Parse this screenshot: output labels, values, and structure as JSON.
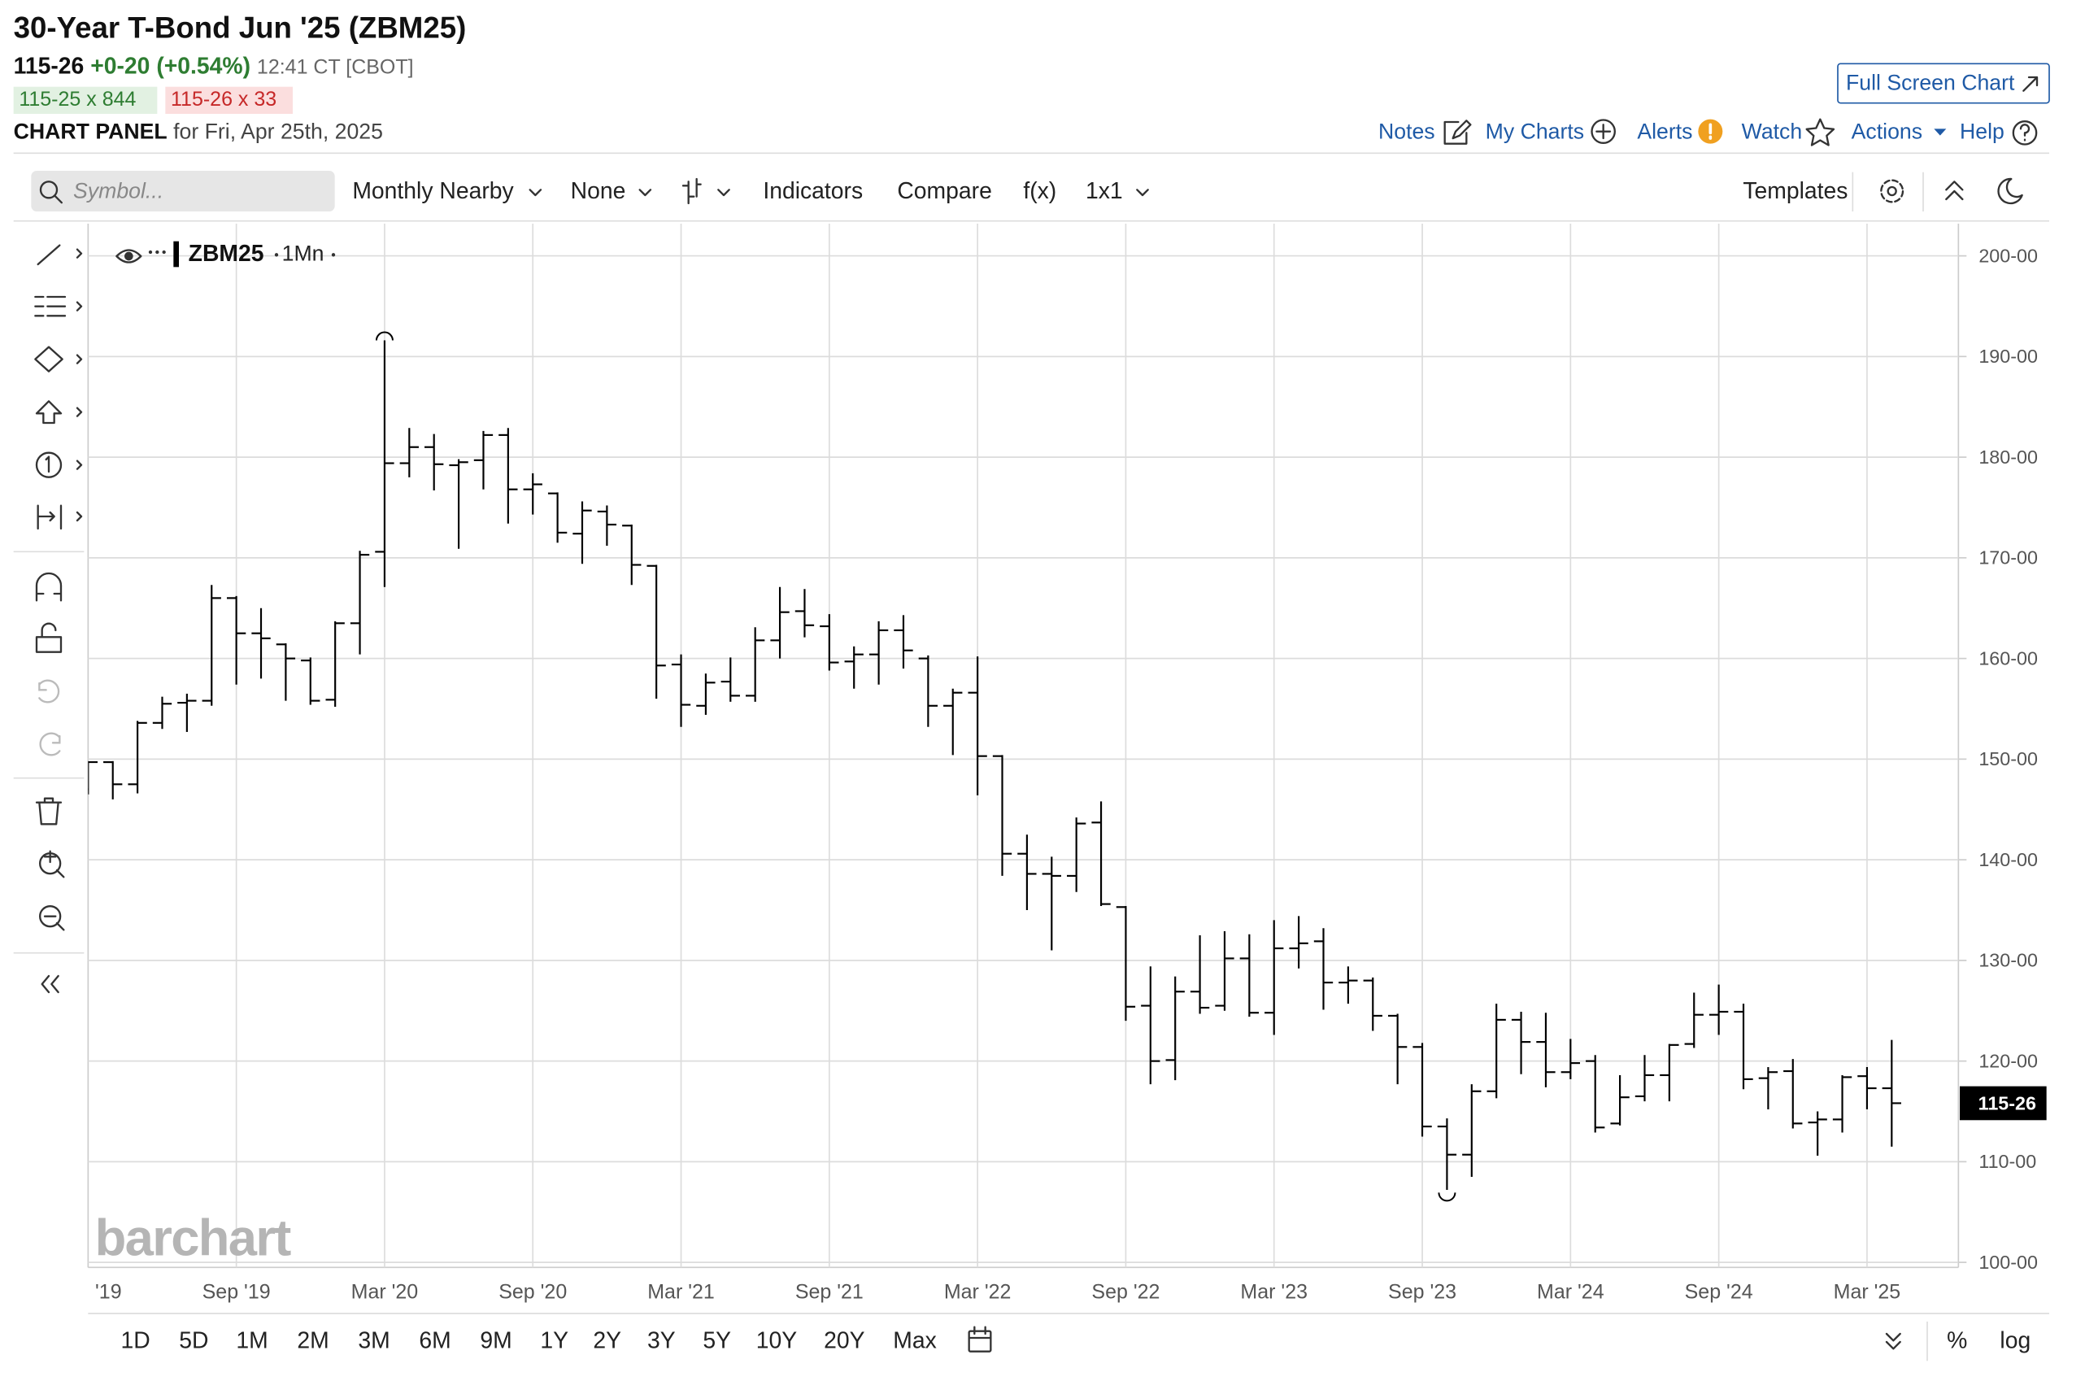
{
  "header": {
    "title": "30-Year T-Bond Jun '25 (ZBM25)",
    "last": "115-26",
    "change": "+0-20",
    "change_pct": "(+0.54%)",
    "time": "12:41 CT [CBOT]",
    "bid": "115-25 x 844",
    "ask": "115-26 x 33",
    "panel_label": "CHART PANEL",
    "panel_date": "for Fri, Apr 25th, 2025",
    "full_screen": "Full Screen Chart"
  },
  "nav": {
    "items": [
      "Notes",
      "My Charts",
      "Alerts",
      "Watch",
      "Actions",
      "Help"
    ]
  },
  "toolbar": {
    "search_placeholder": "Symbol...",
    "period": "Monthly Nearby",
    "overlay": "None",
    "indicators": "Indicators",
    "compare": "Compare",
    "function": "f(x)",
    "layout": "1x1",
    "templates": "Templates"
  },
  "chart_data": {
    "type": "ohlc",
    "interval": "1Mn",
    "watermark": "barchart",
    "categories": [
      "'19",
      null,
      null,
      null,
      null,
      null,
      "Sep '19",
      null,
      null,
      null,
      null,
      null,
      "Mar '20",
      null,
      null,
      null,
      null,
      null,
      "Sep '20",
      null,
      null,
      null,
      null,
      null,
      "Mar '21",
      null,
      null,
      null,
      null,
      null,
      "Sep '21",
      null,
      null,
      null,
      null,
      null,
      "Mar '22",
      null,
      null,
      null,
      null,
      null,
      "Sep '22",
      null,
      null,
      null,
      null,
      null,
      "Mar '23",
      null,
      null,
      null,
      null,
      null,
      "Sep '23",
      null,
      null,
      null,
      null,
      null,
      "Mar '24",
      null,
      null,
      null,
      null,
      null,
      "Sep '24",
      null,
      null,
      null,
      null,
      null,
      "Mar '25",
      null
    ],
    "series": [
      {
        "name": "ZBM25",
        "color": "#000000",
        "open": [
          147.0,
          149.7,
          147.5,
          153.6,
          155.6,
          155.8,
          166.0,
          162.5,
          161.4,
          159.8,
          155.9,
          163.5,
          170.6,
          179.4,
          181.0,
          179.2,
          179.7,
          182.2,
          176.8,
          176.4,
          172.4,
          174.6,
          173.2,
          169.2,
          159.4,
          155.3,
          157.7,
          156.3,
          161.8,
          164.7,
          163.2,
          159.7,
          160.4,
          162.8,
          160.0,
          155.3,
          156.6,
          150.3,
          140.6,
          138.6,
          138.4,
          143.7,
          135.3,
          125.5,
          120.1,
          126.9,
          125.5,
          130.2,
          124.8,
          131.2,
          131.9,
          127.8,
          128.0,
          124.5,
          121.4,
          113.5,
          110.7,
          117.0,
          124.1,
          121.9,
          118.9,
          120.0,
          113.8,
          116.5,
          118.6,
          121.7,
          124.6,
          124.9,
          118.3,
          119.0,
          113.9,
          114.2,
          118.5,
          117.3
        ],
        "high": [
          149.8,
          149.8,
          153.8,
          156.2,
          156.5,
          167.3,
          166.2,
          165.0,
          161.5,
          160.1,
          163.7,
          170.7,
          191.6,
          182.9,
          182.3,
          179.8,
          182.6,
          182.9,
          178.4,
          176.5,
          175.6,
          175.2,
          173.3,
          169.3,
          160.4,
          158.5,
          160.1,
          163.1,
          167.1,
          166.9,
          164.4,
          161.2,
          163.7,
          164.3,
          160.3,
          157.0,
          160.2,
          150.4,
          142.5,
          140.3,
          144.2,
          145.8,
          135.4,
          129.4,
          128.4,
          132.5,
          132.9,
          132.6,
          134.0,
          134.4,
          133.2,
          129.4,
          128.3,
          124.7,
          121.8,
          114.3,
          117.7,
          125.7,
          124.9,
          124.8,
          122.2,
          120.6,
          118.6,
          120.6,
          121.7,
          126.8,
          127.6,
          125.7,
          119.4,
          120.2,
          115.0,
          118.6,
          119.4,
          122.1
        ],
        "low": [
          146.5,
          146.0,
          146.6,
          153.0,
          152.7,
          155.3,
          157.4,
          158.0,
          155.8,
          155.4,
          155.2,
          160.4,
          167.1,
          178.0,
          176.7,
          170.9,
          176.8,
          173.4,
          174.3,
          171.5,
          169.4,
          171.2,
          167.3,
          156.0,
          153.2,
          154.4,
          155.7,
          155.7,
          160.0,
          162.1,
          158.8,
          157.0,
          157.4,
          159.0,
          153.2,
          150.4,
          146.4,
          138.4,
          135.0,
          131.0,
          136.8,
          135.4,
          124.0,
          117.7,
          118.1,
          124.7,
          125.0,
          124.4,
          122.6,
          129.2,
          125.1,
          125.7,
          123.0,
          117.7,
          112.5,
          107.2,
          108.5,
          116.3,
          118.7,
          117.4,
          118.2,
          112.9,
          113.6,
          116.0,
          116.0,
          121.3,
          122.6,
          117.2,
          115.2,
          113.3,
          110.6,
          112.9,
          115.2,
          111.5
        ],
        "close": [
          149.7,
          147.5,
          153.6,
          155.5,
          155.8,
          166.0,
          162.5,
          162.0,
          160.0,
          155.8,
          163.5,
          170.3,
          179.4,
          181.0,
          179.3,
          179.5,
          182.2,
          176.8,
          177.3,
          172.5,
          174.7,
          173.3,
          169.3,
          159.3,
          155.4,
          157.6,
          156.3,
          161.8,
          164.6,
          163.3,
          159.6,
          160.4,
          162.8,
          160.8,
          155.3,
          156.6,
          150.3,
          140.6,
          138.6,
          138.4,
          143.6,
          135.6,
          125.4,
          120.0,
          126.9,
          125.3,
          130.2,
          124.8,
          131.2,
          131.7,
          127.8,
          128.0,
          124.5,
          121.4,
          113.5,
          110.7,
          117.0,
          124.1,
          121.9,
          118.9,
          119.8,
          113.4,
          116.4,
          118.6,
          121.6,
          124.6,
          124.9,
          118.2,
          118.9,
          113.8,
          114.2,
          118.4,
          117.3,
          115.8125
        ]
      }
    ],
    "ylim": [
      99.5,
      203.2
    ],
    "yticks": [
      {
        "value": 100,
        "label": "100-00"
      },
      {
        "value": 110,
        "label": "110-00"
      },
      {
        "value": 120,
        "label": "120-00"
      },
      {
        "value": 130,
        "label": "130-00"
      },
      {
        "value": 140,
        "label": "140-00"
      },
      {
        "value": 150,
        "label": "150-00"
      },
      {
        "value": 160,
        "label": "160-00"
      },
      {
        "value": 170,
        "label": "170-00"
      },
      {
        "value": 180,
        "label": "180-00"
      },
      {
        "value": 190,
        "label": "190-00"
      },
      {
        "value": 200,
        "label": "200-00"
      }
    ],
    "grid": true,
    "last": {
      "value": 115.8125,
      "label": "115-26"
    }
  },
  "timeframes": {
    "items": [
      "1D",
      "5D",
      "1M",
      "2M",
      "3M",
      "6M",
      "9M",
      "1Y",
      "2Y",
      "3Y",
      "5Y",
      "10Y",
      "20Y",
      "Max"
    ],
    "percent": "%",
    "log": "log"
  }
}
